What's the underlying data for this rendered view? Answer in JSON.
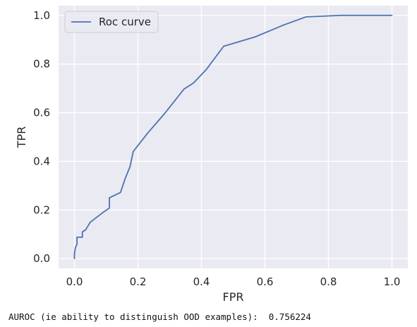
{
  "chart_data": {
    "type": "line",
    "title": "",
    "xlabel": "FPR",
    "ylabel": "TPR",
    "xlim": [
      -0.05,
      1.05
    ],
    "ylim": [
      -0.04,
      1.04
    ],
    "grid": true,
    "legend_placement": "top-left",
    "x_ticks": [
      "0.0",
      "0.2",
      "0.4",
      "0.6",
      "0.8",
      "1.0"
    ],
    "y_ticks": [
      "0.0",
      "0.2",
      "0.4",
      "0.6",
      "0.8",
      "1.0"
    ],
    "series": [
      {
        "name": "Roc curve",
        "color": "#4c72b0",
        "x": [
          0.0,
          0.0,
          0.003,
          0.008,
          0.008,
          0.025,
          0.025,
          0.035,
          0.05,
          0.09,
          0.11,
          0.11,
          0.145,
          0.16,
          0.175,
          0.185,
          0.23,
          0.285,
          0.345,
          0.375,
          0.415,
          0.47,
          0.57,
          0.66,
          0.73,
          0.84,
          1.0
        ],
        "y": [
          0.0,
          0.02,
          0.045,
          0.06,
          0.088,
          0.088,
          0.11,
          0.118,
          0.15,
          0.19,
          0.208,
          0.25,
          0.272,
          0.33,
          0.378,
          0.44,
          0.515,
          0.598,
          0.697,
          0.722,
          0.777,
          0.873,
          0.912,
          0.961,
          0.994,
          1.0,
          1.0
        ]
      }
    ]
  },
  "footer": {
    "text": "AUROC (ie ability to distinguish OOD examples):  0.756224"
  }
}
